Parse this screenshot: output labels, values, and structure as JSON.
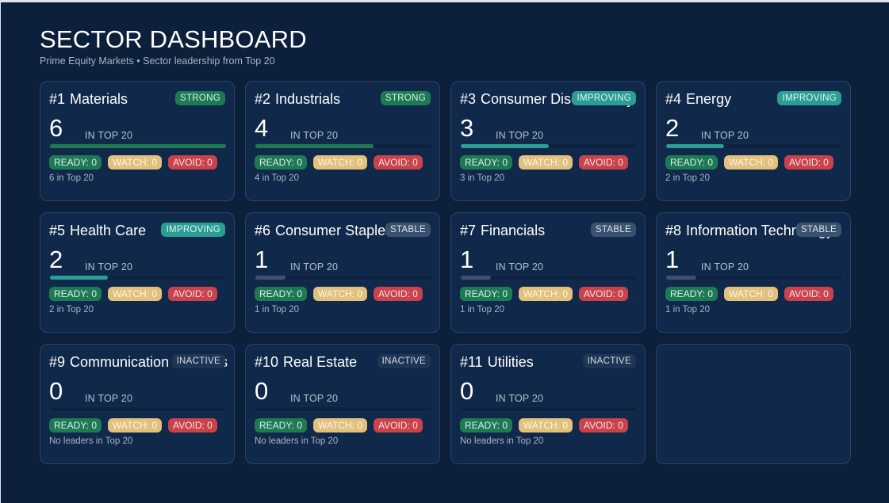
{
  "header": {
    "title": "SECTOR DASHBOARD",
    "subtitle": "Prime Equity Markets • Sector leadership from Top 20"
  },
  "colors": {
    "background": "#0c1f3b",
    "card": "#10284a",
    "strong": "#1e7a55",
    "improving": "#2a9d94",
    "stable": "#3b526f",
    "inactive": "#1f3554",
    "ready": "#1e7a55",
    "watch": "#e2c07e",
    "avoid": "#c8434b"
  },
  "count_label": "IN TOP 20",
  "cards": [
    {
      "rank": "#1",
      "name": "Materials",
      "status": "STRONG",
      "status_class": "strong",
      "count": "6",
      "bar_pct": 100,
      "bar_color": "#1e7a55",
      "ready": "READY: 0",
      "watch": "WATCH: 0",
      "avoid": "AVOID: 0",
      "note": "6 in Top 20"
    },
    {
      "rank": "#2",
      "name": "Industrials",
      "status": "STRONG",
      "status_class": "strong",
      "count": "4",
      "bar_pct": 67,
      "bar_color": "#1e7a55",
      "ready": "READY: 0",
      "watch": "WATCH: 0",
      "avoid": "AVOID: 0",
      "note": "4 in Top 20"
    },
    {
      "rank": "#3",
      "name": "Consumer Discretionary",
      "status": "IMPROVING",
      "status_class": "improving",
      "count": "3",
      "bar_pct": 50,
      "bar_color": "#2a9d94",
      "ready": "READY: 0",
      "watch": "WATCH: 0",
      "avoid": "AVOID: 0",
      "note": "3 in Top 20"
    },
    {
      "rank": "#4",
      "name": "Energy",
      "status": "IMPROVING",
      "status_class": "improving",
      "count": "2",
      "bar_pct": 33,
      "bar_color": "#2a9d94",
      "ready": "READY: 0",
      "watch": "WATCH: 0",
      "avoid": "AVOID: 0",
      "note": "2 in Top 20"
    },
    {
      "rank": "#5",
      "name": "Health Care",
      "status": "IMPROVING",
      "status_class": "improving",
      "count": "2",
      "bar_pct": 33,
      "bar_color": "#2a9d94",
      "ready": "READY: 0",
      "watch": "WATCH: 0",
      "avoid": "AVOID: 0",
      "note": "2 in Top 20"
    },
    {
      "rank": "#6",
      "name": "Consumer Staples",
      "status": "STABLE",
      "status_class": "stable",
      "count": "1",
      "bar_pct": 17,
      "bar_color": "#3b526f",
      "ready": "READY: 0",
      "watch": "WATCH: 0",
      "avoid": "AVOID: 0",
      "note": "1 in Top 20"
    },
    {
      "rank": "#7",
      "name": "Financials",
      "status": "STABLE",
      "status_class": "stable",
      "count": "1",
      "bar_pct": 17,
      "bar_color": "#3b526f",
      "ready": "READY: 0",
      "watch": "WATCH: 0",
      "avoid": "AVOID: 0",
      "note": "1 in Top 20"
    },
    {
      "rank": "#8",
      "name": "Information Technology",
      "status": "STABLE",
      "status_class": "stable",
      "count": "1",
      "bar_pct": 17,
      "bar_color": "#3b526f",
      "ready": "READY: 0",
      "watch": "WATCH: 0",
      "avoid": "AVOID: 0",
      "note": "1 in Top 20"
    },
    {
      "rank": "#9",
      "name": "Communication Services",
      "status": "INACTIVE",
      "status_class": "inactive",
      "count": "0",
      "bar_pct": 0,
      "bar_color": "#3b526f",
      "ready": "READY: 0",
      "watch": "WATCH: 0",
      "avoid": "AVOID: 0",
      "note": "No leaders in Top 20"
    },
    {
      "rank": "#10",
      "name": "Real Estate",
      "status": "INACTIVE",
      "status_class": "inactive",
      "count": "0",
      "bar_pct": 0,
      "bar_color": "#3b526f",
      "ready": "READY: 0",
      "watch": "WATCH: 0",
      "avoid": "AVOID: 0",
      "note": "No leaders in Top 20"
    },
    {
      "rank": "#11",
      "name": "Utilities",
      "status": "INACTIVE",
      "status_class": "inactive",
      "count": "0",
      "bar_pct": 0,
      "bar_color": "#3b526f",
      "ready": "READY: 0",
      "watch": "WATCH: 0",
      "avoid": "AVOID: 0",
      "note": "No leaders in Top 20"
    }
  ]
}
